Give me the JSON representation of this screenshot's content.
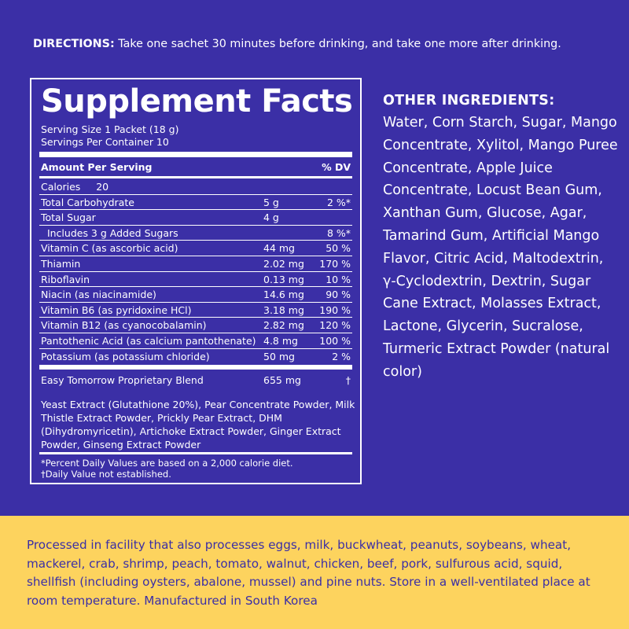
{
  "colors": {
    "panel": "#3b2fa6",
    "accent_panel": "#fdd35e",
    "text_light": "#ffffff"
  },
  "directions": {
    "label": "DIRECTIONS:",
    "text": " Take one sachet 30 minutes before drinking, and take one more after drinking."
  },
  "facts": {
    "title": "Supplement Facts",
    "serving_size": "Serving Size 1 Packet (18 g)",
    "servings_per_container": "Servings Per Container 10",
    "header_amount": "Amount Per Serving",
    "header_dv": "% DV",
    "rows": [
      {
        "name": "Calories     20",
        "amount": "",
        "dv": ""
      },
      {
        "name": "Total Carbohydrate",
        "amount": "5 g",
        "dv": "2 %*"
      },
      {
        "name": "Total Sugar",
        "amount": "4 g",
        "dv": ""
      },
      {
        "name": "  Includes 3 g Added Sugars",
        "amount": "",
        "dv": "8 %*"
      },
      {
        "name": "Vitamin C (as ascorbic acid)",
        "amount": "44 mg",
        "dv": "50 %"
      },
      {
        "name": "Thiamin",
        "amount": "2.02 mg",
        "dv": "170 %"
      },
      {
        "name": "Riboflavin",
        "amount": "0.13 mg",
        "dv": "10 %"
      },
      {
        "name": "Niacin (as niacinamide)",
        "amount": "14.6 mg",
        "dv": "90 %"
      },
      {
        "name": "Vitamin B6 (as pyridoxine HCl)",
        "amount": "3.18 mg",
        "dv": "190 %"
      },
      {
        "name": "Vitamin B12 (as cyanocobalamin)",
        "amount": "2.82 mg",
        "dv": "120 %"
      },
      {
        "name": "Pantothenic Acid (as calcium pantothenate)",
        "amount": "4.8 mg",
        "dv": "100 %"
      },
      {
        "name": "Potassium (as potassium chloride)",
        "amount": "50 mg",
        "dv": "2 %"
      }
    ],
    "blend": {
      "name": "Easy Tomorrow Proprietary Blend",
      "amount": "655 mg",
      "dv": "†"
    },
    "blend_ingredients": "Yeast Extract (Glutathione 20%), Pear Concentrate Powder, Milk Thistle Extract Powder, Prickly Pear Extract, DHM (Dihydromyricetin), Artichoke Extract Powder, Ginger Extract Powder, Ginseng Extract Powder",
    "footnote_1": "*Percent Daily Values are based on a 2,000 calorie diet.",
    "footnote_2": "†Daily Value not established."
  },
  "other_ingredients": {
    "title": "OTHER INGREDIENTS:",
    "text": "Water, Corn Starch, Sugar, Mango Concentrate, Xylitol, Mango Puree Concentrate, Apple Juice Concentrate, Locust Bean Gum, Xanthan Gum, Glucose, Agar, Tamarind Gum, Artificial Mango Flavor, Citric Acid, Maltodextrin, γ-Cyclodextrin, Dextrin, Sugar Cane Extract, Molasses Extract, Lactone, Glycerin, Sucralose, Turmeric Extract Powder (natural color)"
  },
  "warning": "Processed in facility that also processes eggs, milk, buckwheat, peanuts, soybeans, wheat, mackerel, crab, shrimp, peach, tomato, walnut, chicken, beef, pork, sulfurous acid, squid, shellfish (including oysters, abalone, mussel) and pine nuts. Store in a well-ventilated place at room temperature. Manufactured in South Korea"
}
